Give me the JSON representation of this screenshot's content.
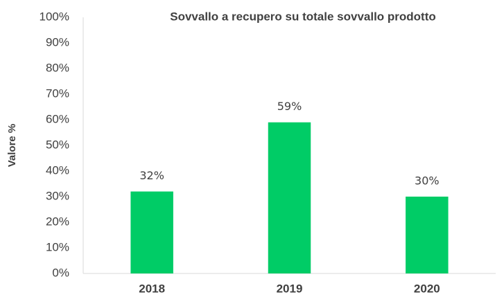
{
  "chart_data": {
    "type": "bar",
    "title": "Sovvallo a recupero su totale sovvallo prodotto",
    "y_label": "Valore %",
    "categories": [
      "2018",
      "2019",
      "2020"
    ],
    "values": [
      32,
      59,
      30
    ],
    "value_labels": [
      "32%",
      "59%",
      "30%"
    ],
    "color": "#00cc66",
    "ylim": [
      0,
      100
    ],
    "yticks": [
      {
        "value": 0,
        "label": "0%"
      },
      {
        "value": 10,
        "label": "10%"
      },
      {
        "value": 20,
        "label": "20%"
      },
      {
        "value": 30,
        "label": "30%"
      },
      {
        "value": 40,
        "label": "40%"
      },
      {
        "value": 50,
        "label": "50%"
      },
      {
        "value": 60,
        "label": "60%"
      },
      {
        "value": 70,
        "label": "70%"
      },
      {
        "value": 80,
        "label": "80%"
      },
      {
        "value": 90,
        "label": "90%"
      },
      {
        "value": 100,
        "label": "100%"
      }
    ],
    "grid": false
  }
}
